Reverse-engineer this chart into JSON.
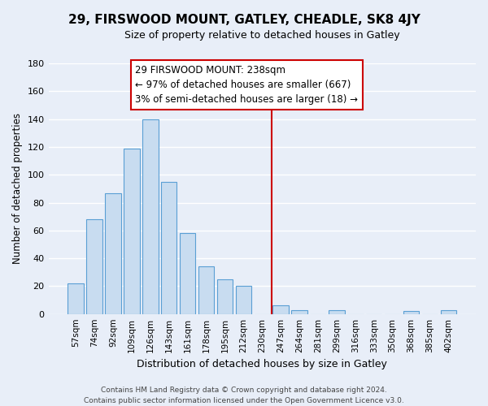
{
  "title": "29, FIRSWOOD MOUNT, GATLEY, CHEADLE, SK8 4JY",
  "subtitle": "Size of property relative to detached houses in Gatley",
  "xlabel": "Distribution of detached houses by size in Gatley",
  "ylabel": "Number of detached properties",
  "bar_labels": [
    "57sqm",
    "74sqm",
    "92sqm",
    "109sqm",
    "126sqm",
    "143sqm",
    "161sqm",
    "178sqm",
    "195sqm",
    "212sqm",
    "230sqm",
    "247sqm",
    "264sqm",
    "281sqm",
    "299sqm",
    "316sqm",
    "333sqm",
    "350sqm",
    "368sqm",
    "385sqm",
    "402sqm"
  ],
  "bar_values": [
    22,
    68,
    87,
    119,
    140,
    95,
    58,
    34,
    25,
    20,
    0,
    6,
    3,
    0,
    3,
    0,
    0,
    0,
    2,
    0,
    3
  ],
  "bar_color": "#c8dcf0",
  "bar_edge_color": "#5a9fd4",
  "background_color": "#e8eef8",
  "grid_color": "#ffffff",
  "ylim": [
    0,
    180
  ],
  "yticks": [
    0,
    20,
    40,
    60,
    80,
    100,
    120,
    140,
    160,
    180
  ],
  "vline_x": 10.5,
  "vline_color": "#cc0000",
  "annotation_title": "29 FIRSWOOD MOUNT: 238sqm",
  "annotation_line1": "← 97% of detached houses are smaller (667)",
  "annotation_line2": "3% of semi-detached houses are larger (18) →",
  "annotation_box_color": "#ffffff",
  "annotation_box_edge": "#cc0000",
  "footer_line1": "Contains HM Land Registry data © Crown copyright and database right 2024.",
  "footer_line2": "Contains public sector information licensed under the Open Government Licence v3.0."
}
